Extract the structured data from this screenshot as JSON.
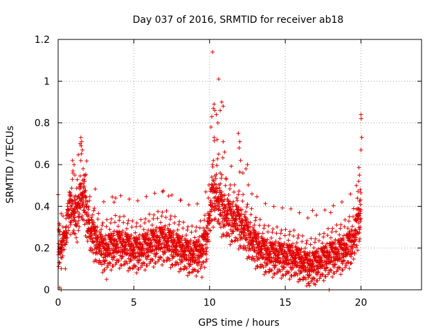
{
  "chart_data": {
    "type": "scatter",
    "title": "Day 037 of 2016, SRMTID for receiver ab18",
    "xlabel": "GPS time / hours",
    "ylabel": "SRMTID / TECUs",
    "xlim": [
      0,
      24
    ],
    "ylim": [
      0,
      1.2
    ],
    "xticks": [
      0,
      5,
      10,
      15,
      20
    ],
    "xtick_labels": [
      "0",
      "5",
      "10",
      "15",
      "20"
    ],
    "yticks": [
      0,
      0.2,
      0.4,
      0.6,
      0.8,
      1.0,
      1.2
    ],
    "ytick_labels": [
      "0",
      "0.2",
      "0.4",
      "0.6",
      "0.8",
      "1",
      "1.2"
    ],
    "grid": true,
    "marker": "+",
    "color": "#e00000",
    "series": [
      {
        "name": "SRMTID",
        "trend": {
          "x": [
            0.0,
            0.3,
            0.6,
            0.9,
            1.2,
            1.5,
            1.8,
            2.1,
            2.5,
            3.0,
            3.5,
            4.0,
            4.5,
            5.0,
            5.5,
            6.0,
            6.5,
            7.0,
            7.5,
            8.0,
            8.5,
            9.0,
            9.5,
            9.8,
            10.1,
            10.4,
            10.7,
            11.0,
            11.3,
            11.6,
            12.0,
            12.5,
            13.0,
            13.5,
            14.0,
            14.5,
            15.0,
            15.5,
            16.0,
            16.5,
            17.0,
            17.5,
            18.0,
            18.5,
            19.0,
            19.5,
            19.8,
            20.0
          ],
          "y": [
            0.22,
            0.2,
            0.3,
            0.38,
            0.32,
            0.45,
            0.38,
            0.27,
            0.22,
            0.17,
            0.19,
            0.2,
            0.19,
            0.17,
            0.18,
            0.2,
            0.21,
            0.22,
            0.2,
            0.18,
            0.16,
            0.15,
            0.18,
            0.22,
            0.4,
            0.45,
            0.38,
            0.35,
            0.33,
            0.32,
            0.3,
            0.25,
            0.2,
            0.17,
            0.15,
            0.15,
            0.14,
            0.14,
            0.12,
            0.1,
            0.11,
            0.13,
            0.15,
            0.16,
            0.18,
            0.22,
            0.3,
            0.36
          ]
        },
        "spread": 0.07,
        "n_points": 2600,
        "x_range": [
          0.0,
          20.0
        ],
        "outliers": [
          {
            "x": 10.2,
            "y": 1.14
          },
          {
            "x": 10.6,
            "y": 1.01
          },
          {
            "x": 10.8,
            "y": 0.9
          },
          {
            "x": 10.9,
            "y": 0.88
          },
          {
            "x": 10.3,
            "y": 0.89
          },
          {
            "x": 10.25,
            "y": 0.87
          },
          {
            "x": 10.35,
            "y": 0.86
          },
          {
            "x": 10.45,
            "y": 0.84
          },
          {
            "x": 10.7,
            "y": 0.86
          },
          {
            "x": 10.55,
            "y": 0.8
          },
          {
            "x": 10.15,
            "y": 0.83
          },
          {
            "x": 10.1,
            "y": 0.78
          },
          {
            "x": 10.3,
            "y": 0.73
          },
          {
            "x": 10.5,
            "y": 0.72
          },
          {
            "x": 10.9,
            "y": 0.71
          },
          {
            "x": 11.0,
            "y": 0.66
          },
          {
            "x": 10.6,
            "y": 0.65
          },
          {
            "x": 10.2,
            "y": 0.6
          },
          {
            "x": 10.7,
            "y": 0.56
          },
          {
            "x": 11.1,
            "y": 0.53
          },
          {
            "x": 11.9,
            "y": 0.75
          },
          {
            "x": 12.0,
            "y": 0.71
          },
          {
            "x": 11.95,
            "y": 0.68
          },
          {
            "x": 12.05,
            "y": 0.62
          },
          {
            "x": 12.4,
            "y": 0.58
          },
          {
            "x": 12.5,
            "y": 0.6
          },
          {
            "x": 12.2,
            "y": 0.56
          },
          {
            "x": 11.8,
            "y": 0.44
          },
          {
            "x": 1.5,
            "y": 0.73
          },
          {
            "x": 1.55,
            "y": 0.71
          },
          {
            "x": 1.52,
            "y": 0.69
          },
          {
            "x": 1.6,
            "y": 0.67
          },
          {
            "x": 1.45,
            "y": 0.7
          },
          {
            "x": 1.65,
            "y": 0.58
          },
          {
            "x": 1.7,
            "y": 0.55
          },
          {
            "x": 1.75,
            "y": 0.52
          },
          {
            "x": 0.95,
            "y": 0.62
          },
          {
            "x": 1.05,
            "y": 0.6
          },
          {
            "x": 0.98,
            "y": 0.57
          },
          {
            "x": 1.1,
            "y": 0.55
          },
          {
            "x": 20.0,
            "y": 0.84
          },
          {
            "x": 20.02,
            "y": 0.82
          },
          {
            "x": 20.05,
            "y": 0.73
          },
          {
            "x": 20.0,
            "y": 0.67
          },
          {
            "x": 19.9,
            "y": 0.55
          },
          {
            "x": 19.85,
            "y": 0.52
          },
          {
            "x": 19.7,
            "y": 0.5
          },
          {
            "x": 19.95,
            "y": 0.48
          },
          {
            "x": 16.8,
            "y": 0.38
          },
          {
            "x": 18.0,
            "y": 0.37
          },
          {
            "x": 3.8,
            "y": 0.44
          },
          {
            "x": 3.7,
            "y": 0.42
          },
          {
            "x": 6.9,
            "y": 0.47
          },
          {
            "x": 7.3,
            "y": 0.45
          },
          {
            "x": 8.1,
            "y": 0.43
          },
          {
            "x": 12.8,
            "y": 0.46
          },
          {
            "x": 0.1,
            "y": 0.31
          },
          {
            "x": 0.2,
            "y": 0.0
          },
          {
            "x": 0.1,
            "y": 0.01
          },
          {
            "x": 17.9,
            "y": 0.0
          },
          {
            "x": 16.6,
            "y": 0.02
          },
          {
            "x": 16.9,
            "y": 0.03
          },
          {
            "x": 3.2,
            "y": 0.05
          },
          {
            "x": 9.5,
            "y": 0.06
          }
        ]
      }
    ]
  }
}
